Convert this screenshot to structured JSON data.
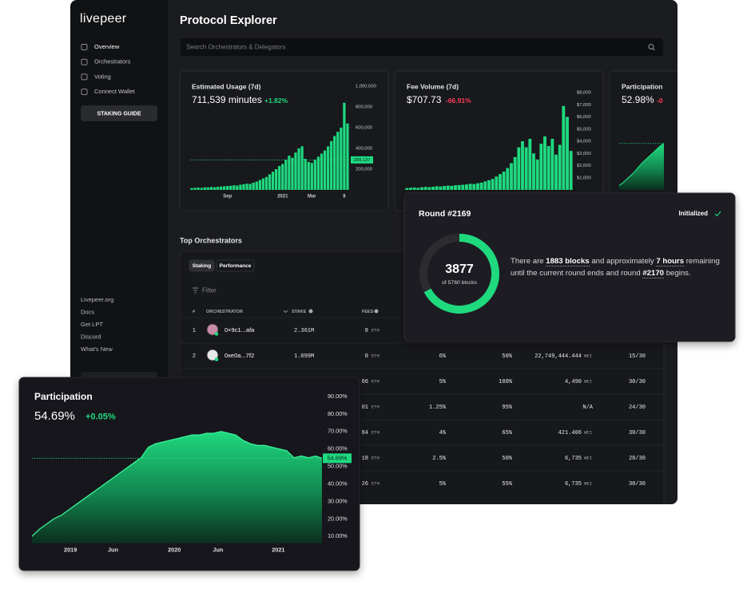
{
  "sidebar": {
    "logo": "livepeer",
    "nav": [
      "Overview",
      "Orchestrators",
      "Voting",
      "Connect Wallet"
    ],
    "button": "STAKING GUIDE",
    "links": [
      "Livepeer.org",
      "Docs",
      "Get LPT",
      "Discord",
      "What's New"
    ]
  },
  "header": {
    "title": "Protocol Explorer",
    "search_placeholder": "Search Orchestrators & Delegators"
  },
  "chart_data": [
    {
      "type": "bar",
      "title": "Estimated Usage (7d)",
      "value": "711,539 minutes",
      "change": "+1.82%",
      "color": "#1fd97f",
      "categories": [
        null,
        null,
        null,
        null,
        null,
        null,
        null,
        null,
        null,
        null,
        null,
        "Sep",
        null,
        null,
        null,
        null,
        null,
        null,
        null,
        null,
        null,
        null,
        null,
        null,
        null,
        null,
        null,
        null,
        "2021",
        null,
        null,
        null,
        null,
        null,
        null,
        null,
        null,
        "Mar",
        null,
        null,
        null,
        null,
        null,
        null,
        null,
        null,
        null,
        "8",
        null
      ],
      "values": [
        18000,
        20000,
        22000,
        19000,
        25000,
        24000,
        28000,
        26000,
        30000,
        32000,
        35000,
        38000,
        40000,
        45000,
        42000,
        50000,
        55000,
        60000,
        58000,
        70000,
        80000,
        95000,
        110000,
        125000,
        150000,
        175000,
        200000,
        230000,
        250000,
        290000,
        330000,
        310000,
        360000,
        400000,
        420000,
        300000,
        270000,
        260000,
        290000,
        320000,
        350000,
        380000,
        420000,
        470000,
        520000,
        560000,
        600000,
        840000,
        640000
      ],
      "ylim": [
        0,
        1000000
      ],
      "yticks": [
        {
          "value": 200000,
          "label": "200,000"
        },
        {
          "value": 400000,
          "label": "400,000"
        },
        {
          "value": 600000,
          "label": "600,000"
        },
        {
          "value": 800000,
          "label": "800,000"
        },
        {
          "value": 1000000,
          "label": "1,000,000"
        }
      ],
      "marker": {
        "value": 289137,
        "label": "289,137"
      }
    },
    {
      "type": "bar",
      "title": "Fee Volume (7d)",
      "value": "$707.73",
      "change": "-66.91%",
      "color": "#1fd97f",
      "values": [
        150,
        180,
        200,
        170,
        220,
        250,
        230,
        260,
        300,
        280,
        320,
        350,
        330,
        380,
        400,
        420,
        450,
        500,
        480,
        550,
        600,
        700,
        800,
        900,
        1100,
        1300,
        1500,
        1800,
        2200,
        2700,
        3500,
        4000,
        3500,
        4200,
        3000,
        2500,
        3800,
        4400,
        3600,
        4200,
        2900,
        3700,
        6900,
        6000,
        3200
      ],
      "ylim": [
        0,
        8000
      ],
      "yticks": [
        {
          "value": 1000,
          "label": "$1,000"
        },
        {
          "value": 2000,
          "label": "$2,000"
        },
        {
          "value": 3000,
          "label": "$3,000"
        },
        {
          "value": 4000,
          "label": "$4,000"
        },
        {
          "value": 5000,
          "label": "$5,000"
        },
        {
          "value": 6000,
          "label": "$6,000"
        },
        {
          "value": 7000,
          "label": "$7,000"
        },
        {
          "value": 8000,
          "label": "$8,000"
        }
      ]
    },
    {
      "type": "area",
      "title": "Participation",
      "value": "52.98%",
      "change": "-0",
      "color": "#1fd97f",
      "values": [
        5,
        8,
        12,
        16,
        20,
        25,
        30,
        34,
        38,
        42,
        46,
        50,
        52.98
      ],
      "ylim": [
        0,
        60
      ]
    },
    {
      "type": "area",
      "title": "Participation",
      "value": "54.69%",
      "change": "+0.05%",
      "color": "#1fd97f",
      "x": [
        2018.63,
        2018.7,
        2018.77,
        2018.84,
        2018.91,
        2018.98,
        2019.05,
        2019.12,
        2019.19,
        2019.26,
        2019.33,
        2019.4,
        2019.47,
        2019.54,
        2019.61,
        2019.68,
        2019.75,
        2019.82,
        2019.89,
        2019.96,
        2020.03,
        2020.1,
        2020.17,
        2020.24,
        2020.31,
        2020.38,
        2020.45,
        2020.52,
        2020.59,
        2020.66,
        2020.73,
        2020.8,
        2020.87,
        2020.94,
        2021.01,
        2021.08,
        2021.15,
        2021.22,
        2021.29,
        2021.36,
        2021.42
      ],
      "values": [
        10,
        14,
        17,
        20,
        22,
        25,
        28,
        31,
        34,
        37,
        40,
        43,
        46,
        49,
        52,
        55,
        61,
        63,
        64,
        65,
        66,
        67,
        68,
        68,
        69,
        69,
        70,
        69,
        68,
        65,
        63,
        62,
        62,
        61,
        60,
        59,
        55,
        56,
        55,
        56,
        54.69
      ],
      "xlim": [
        2018.63,
        2021.42
      ],
      "xticks": [
        {
          "value": 2019,
          "label": "2019"
        },
        {
          "value": 2019.41,
          "label": "Jun"
        },
        {
          "value": 2020,
          "label": "2020"
        },
        {
          "value": 2020.42,
          "label": "Jun"
        },
        {
          "value": 2021,
          "label": "2021"
        }
      ],
      "ylim": [
        6,
        90
      ],
      "yticks": [
        {
          "value": 10,
          "label": "10.00%"
        },
        {
          "value": 20,
          "label": "20.00%"
        },
        {
          "value": 30,
          "label": "30.00%"
        },
        {
          "value": 40,
          "label": "40.00%"
        },
        {
          "value": 50,
          "label": "50.00%"
        },
        {
          "value": 60,
          "label": "60.00%"
        },
        {
          "value": 70,
          "label": "70.00%"
        },
        {
          "value": 80,
          "label": "80.00%"
        },
        {
          "value": 90,
          "label": "90.00%"
        }
      ],
      "marker": {
        "value": 54.69,
        "label": "54.69%"
      }
    }
  ],
  "table": {
    "title": "Top Orchestrators",
    "tabs": [
      "Staking",
      "Performance"
    ],
    "filter": "Filter",
    "headers": [
      "#",
      "ORCHESTRATOR",
      "STAKE",
      "FEES"
    ],
    "rows": [
      {
        "rank": "1",
        "name": "0×9c1...afa",
        "stake": "2.361M",
        "fees": "8",
        "fees_unit": "ETH"
      },
      {
        "rank": "2",
        "name": "0xe0a...7f2",
        "stake": "1.099M",
        "fees": "0",
        "fees_unit": "ETH",
        "fee_cut": "6%",
        "reward_cut": "50%",
        "price": "22,749,444.444",
        "price_unit": "WEI",
        "score": "15/30"
      },
      {
        "fees": "66",
        "fees_unit": "ETH",
        "fee_cut": "5%",
        "reward_cut": "100%",
        "price": "4,490",
        "price_unit": "WEI",
        "score": "30/30"
      },
      {
        "fees": "01",
        "fees_unit": "ETH",
        "fee_cut": "1.25%",
        "reward_cut": "95%",
        "price": "N/A",
        "score": "24/30"
      },
      {
        "fees": "84",
        "fees_unit": "ETH",
        "fee_cut": "4%",
        "reward_cut": "65%",
        "price": "421.406",
        "price_unit": "WEI",
        "score": "30/30"
      },
      {
        "fees": "18",
        "fees_unit": "ETH",
        "fee_cut": "2.5%",
        "reward_cut": "50%",
        "price": "6,735",
        "price_unit": "WEI",
        "score": "28/30"
      },
      {
        "fees": "26",
        "fees_unit": "ETH",
        "fee_cut": "5%",
        "reward_cut": "55%",
        "price": "6,735",
        "price_unit": "WEI",
        "score": "30/30"
      }
    ]
  },
  "round": {
    "title": "Round #2169",
    "status": "Initialized",
    "current": 3877,
    "total": 5760,
    "total_label": "of 5760 blocks",
    "text": [
      "There are ",
      "1883 blocks",
      " and approximately ",
      "7 hours",
      " remaining until the current round ends and round ",
      "#2170",
      " begins."
    ]
  }
}
